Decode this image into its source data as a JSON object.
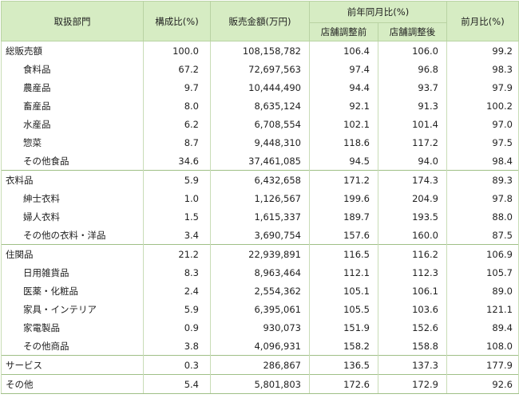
{
  "headers": {
    "category": "取扱部門",
    "composition": "構成比(%)",
    "sales": "販売金額(万円)",
    "yoy": "前年同月比(%)",
    "yoy_before": "店舗調整前",
    "yoy_after": "店舗調整後",
    "mom": "前月比(%)"
  },
  "rows": [
    {
      "label": "総販売額",
      "sub": false,
      "group_start": true,
      "composition": "100.0",
      "sales": "108,158,782",
      "yoy_before": "106.4",
      "yoy_after": "106.0",
      "mom": "99.2"
    },
    {
      "label": "食料品",
      "sub": true,
      "group_start": false,
      "composition": "67.2",
      "sales": "72,697,563",
      "yoy_before": "97.4",
      "yoy_after": "96.8",
      "mom": "98.3"
    },
    {
      "label": "農産品",
      "sub": true,
      "group_start": false,
      "composition": "9.7",
      "sales": "10,444,490",
      "yoy_before": "94.4",
      "yoy_after": "93.7",
      "mom": "97.9"
    },
    {
      "label": "畜産品",
      "sub": true,
      "group_start": false,
      "composition": "8.0",
      "sales": "8,635,124",
      "yoy_before": "92.1",
      "yoy_after": "91.3",
      "mom": "100.2"
    },
    {
      "label": "水産品",
      "sub": true,
      "group_start": false,
      "composition": "6.2",
      "sales": "6,708,554",
      "yoy_before": "102.1",
      "yoy_after": "101.4",
      "mom": "97.0"
    },
    {
      "label": "惣菜",
      "sub": true,
      "group_start": false,
      "composition": "8.7",
      "sales": "9,448,310",
      "yoy_before": "118.6",
      "yoy_after": "117.2",
      "mom": "97.5"
    },
    {
      "label": "その他食品",
      "sub": true,
      "group_start": false,
      "composition": "34.6",
      "sales": "37,461,085",
      "yoy_before": "94.5",
      "yoy_after": "94.0",
      "mom": "98.4"
    },
    {
      "label": "衣料品",
      "sub": false,
      "group_start": true,
      "composition": "5.9",
      "sales": "6,432,658",
      "yoy_before": "171.2",
      "yoy_after": "174.3",
      "mom": "89.3"
    },
    {
      "label": "紳士衣料",
      "sub": true,
      "group_start": false,
      "composition": "1.0",
      "sales": "1,126,567",
      "yoy_before": "199.6",
      "yoy_after": "204.9",
      "mom": "97.8"
    },
    {
      "label": "婦人衣料",
      "sub": true,
      "group_start": false,
      "composition": "1.5",
      "sales": "1,615,337",
      "yoy_before": "189.7",
      "yoy_after": "193.5",
      "mom": "88.0"
    },
    {
      "label": "その他の衣料・洋品",
      "sub": true,
      "group_start": false,
      "composition": "3.4",
      "sales": "3,690,754",
      "yoy_before": "157.6",
      "yoy_after": "160.0",
      "mom": "87.5"
    },
    {
      "label": "住関品",
      "sub": false,
      "group_start": true,
      "composition": "21.2",
      "sales": "22,939,891",
      "yoy_before": "116.5",
      "yoy_after": "116.2",
      "mom": "106.9"
    },
    {
      "label": "日用雑貨品",
      "sub": true,
      "group_start": false,
      "composition": "8.3",
      "sales": "8,963,464",
      "yoy_before": "112.1",
      "yoy_after": "112.3",
      "mom": "105.7"
    },
    {
      "label": "医薬・化粧品",
      "sub": true,
      "group_start": false,
      "composition": "2.4",
      "sales": "2,554,362",
      "yoy_before": "105.1",
      "yoy_after": "106.1",
      "mom": "89.0"
    },
    {
      "label": "家具・インテリア",
      "sub": true,
      "group_start": false,
      "composition": "5.9",
      "sales": "6,395,061",
      "yoy_before": "105.5",
      "yoy_after": "103.6",
      "mom": "121.1"
    },
    {
      "label": "家電製品",
      "sub": true,
      "group_start": false,
      "composition": "0.9",
      "sales": "930,073",
      "yoy_before": "151.9",
      "yoy_after": "152.6",
      "mom": "89.4"
    },
    {
      "label": "その他商品",
      "sub": true,
      "group_start": false,
      "composition": "3.8",
      "sales": "4,096,931",
      "yoy_before": "158.2",
      "yoy_after": "158.8",
      "mom": "108.0"
    },
    {
      "label": "サービス",
      "sub": false,
      "group_start": true,
      "composition": "0.3",
      "sales": "286,867",
      "yoy_before": "136.5",
      "yoy_after": "137.3",
      "mom": "177.9"
    },
    {
      "label": "その他",
      "sub": false,
      "group_start": true,
      "composition": "5.4",
      "sales": "5,801,803",
      "yoy_before": "172.6",
      "yoy_after": "172.9",
      "mom": "92.6"
    }
  ]
}
